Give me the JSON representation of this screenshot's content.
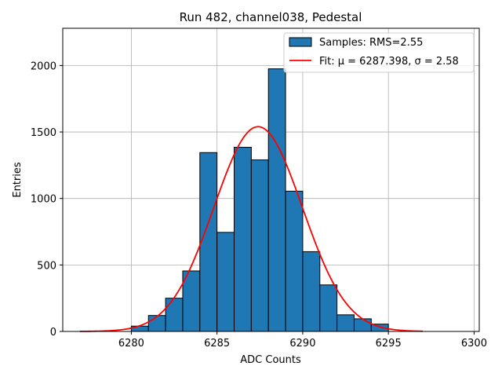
{
  "chart_data": {
    "type": "bar",
    "title": "Run 482, channel038, Pedestal",
    "xlabel": "ADC Counts",
    "ylabel": "Entries",
    "xlim": [
      6276,
      6300.3
    ],
    "ylim": [
      0,
      2280
    ],
    "x_ticks": [
      6280,
      6285,
      6290,
      6295,
      6300
    ],
    "y_ticks": [
      0,
      500,
      1000,
      1500,
      2000
    ],
    "grid": true,
    "legend_position": "top-right",
    "colors": {
      "bar_fill": "#1f77b4",
      "bar_edge": "#000000",
      "fit_line": "#ff0000",
      "grid": "#b0b0b0"
    },
    "histogram": {
      "name": "Samples: RMS=2.55",
      "bins": [
        {
          "x0": 6279.0,
          "x1": 6280.0,
          "count": 0
        },
        {
          "x0": 6280.0,
          "x1": 6281.0,
          "count": 40
        },
        {
          "x0": 6281.0,
          "x1": 6282.0,
          "count": 120
        },
        {
          "x0": 6282.0,
          "x1": 6283.0,
          "count": 250
        },
        {
          "x0": 6283.0,
          "x1": 6284.0,
          "count": 455
        },
        {
          "x0": 6284.0,
          "x1": 6285.0,
          "count": 1345
        },
        {
          "x0": 6285.0,
          "x1": 6286.0,
          "count": 745
        },
        {
          "x0": 6286.0,
          "x1": 6287.0,
          "count": 1385
        },
        {
          "x0": 6287.0,
          "x1": 6288.0,
          "count": 1290
        },
        {
          "x0": 6288.0,
          "x1": 6289.0,
          "count": 1975
        },
        {
          "x0": 6289.0,
          "x1": 6290.0,
          "count": 1055
        },
        {
          "x0": 6290.0,
          "x1": 6291.0,
          "count": 600
        },
        {
          "x0": 6291.0,
          "x1": 6292.0,
          "count": 350
        },
        {
          "x0": 6292.0,
          "x1": 6293.0,
          "count": 125
        },
        {
          "x0": 6293.0,
          "x1": 6294.0,
          "count": 95
        },
        {
          "x0": 6294.0,
          "x1": 6295.0,
          "count": 55
        },
        {
          "x0": 6295.0,
          "x1": 6296.0,
          "count": 0
        }
      ]
    },
    "fit": {
      "name": "Fit: μ = 6287.398, σ = 2.58",
      "mu": 6287.398,
      "sigma": 2.58,
      "amplitude": 1540,
      "x_range": [
        6277,
        6297
      ]
    }
  }
}
